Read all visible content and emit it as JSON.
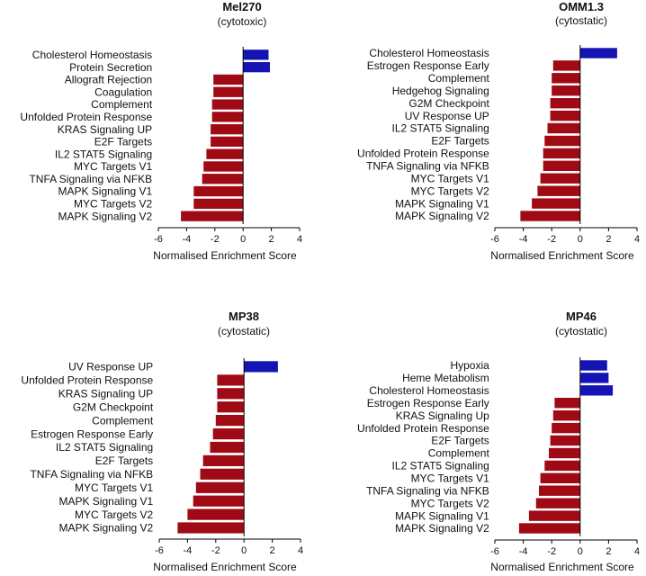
{
  "colors": {
    "positive": "#1414b4",
    "negative": "#a00a14",
    "axis": "#000000"
  },
  "chart_data": [
    {
      "type": "bar",
      "orientation": "horizontal",
      "title": "Mel270",
      "subtitle": "(cytotoxic)",
      "xlabel": "Normalised Enrichment Score",
      "xlim": [
        -6,
        4
      ],
      "xticks": [
        "-6",
        "-4",
        "-2",
        "0",
        "2",
        "4"
      ],
      "categories": [
        "Cholesterol Homeostasis",
        "Protein Secretion",
        "Allograft Rejection",
        "Coagulation",
        "Complement",
        "Unfolded Protein Response",
        "KRAS Signaling UP",
        "E2F Targets",
        "IL2 STAT5 Signaling",
        "MYC Targets V1",
        "TNFA Signaling via NFKB",
        "MAPK Signaling V1",
        "MYC Targets V2",
        "MAPK Signaling V2"
      ],
      "values": [
        1.8,
        1.9,
        -2.1,
        -2.1,
        -2.2,
        -2.2,
        -2.3,
        -2.3,
        -2.6,
        -2.8,
        -2.9,
        -3.5,
        -3.5,
        -4.4
      ]
    },
    {
      "type": "bar",
      "orientation": "horizontal",
      "title": "OMM1.3",
      "subtitle": "(cytostatic)",
      "xlabel": "Normalised Enrichment Score",
      "xlim": [
        -6,
        4
      ],
      "xticks": [
        "-6",
        "-4",
        "-2",
        "0",
        "2",
        "4"
      ],
      "categories": [
        "Cholesterol Homeostasis",
        "Estrogen Response Early",
        "Complement",
        "Hedgehog Signaling",
        "G2M Checkpoint",
        "UV Response UP",
        "IL2 STAT5 Signaling",
        "E2F Targets",
        "Unfolded Protein Response",
        "TNFA Signaling via NFKB",
        "MYC Targets V1",
        "MYC Targets V2",
        "MAPK Signaling V1",
        "MAPK Signaling V2"
      ],
      "values": [
        2.6,
        -1.9,
        -2.0,
        -2.0,
        -2.1,
        -2.1,
        -2.3,
        -2.5,
        -2.6,
        -2.6,
        -2.8,
        -3.0,
        -3.4,
        -4.2
      ]
    },
    {
      "type": "bar",
      "orientation": "horizontal",
      "title": "MP38",
      "subtitle": "(cytostatic)",
      "xlabel": "Normalised Enrichment Score",
      "xlim": [
        -6,
        4
      ],
      "xticks": [
        "-6",
        "-4",
        "-2",
        "0",
        "2",
        "4"
      ],
      "categories": [
        "UV Response UP",
        "Unfolded Protein Response",
        "KRAS Signaling UP",
        "G2M Checkpoint",
        "Complement",
        "Estrogen Response Early",
        "IL2 STAT5 Signaling",
        "E2F Targets",
        "TNFA Signaling via NFKB",
        "MYC Targets V1",
        "MAPK Signaling V1",
        "MYC Targets V2",
        "MAPK Signaling V2"
      ],
      "values": [
        2.4,
        -1.9,
        -1.9,
        -1.9,
        -2.0,
        -2.2,
        -2.4,
        -2.9,
        -3.1,
        -3.4,
        -3.6,
        -4.0,
        -4.7
      ]
    },
    {
      "type": "bar",
      "orientation": "horizontal",
      "title": "MP46",
      "subtitle": "(cytostatic)",
      "xlabel": "Normalised Enrichment Score",
      "xlim": [
        -6,
        4
      ],
      "xticks": [
        "-6",
        "-4",
        "-2",
        "0",
        "2",
        "4"
      ],
      "categories": [
        "Hypoxia",
        "Heme Metabolism",
        "Cholesterol Homeostasis",
        "Estrogen Response Early",
        "KRAS Signaling Up",
        "Unfolded Protein Response",
        "E2F Targets",
        "Complement",
        "IL2 STAT5 Signaling",
        "MYC Targets V1",
        "TNFA Signaling via NFKB",
        "MYC Targets V2",
        "MAPK Signaling V1",
        "MAPK Signaling V2"
      ],
      "values": [
        1.9,
        2.0,
        2.3,
        -1.8,
        -1.9,
        -2.0,
        -2.1,
        -2.2,
        -2.5,
        -2.8,
        -2.9,
        -3.1,
        -3.6,
        -4.3
      ]
    }
  ]
}
